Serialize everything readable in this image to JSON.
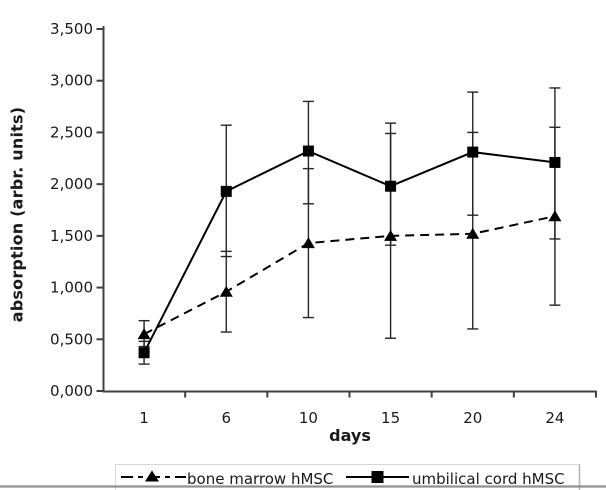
{
  "chart_data": {
    "type": "line",
    "title": "",
    "xlabel": "days",
    "ylabel": "absorption (arbr. units)",
    "x": [
      1,
      6,
      10,
      15,
      20,
      24
    ],
    "x_tick_labels": [
      "1",
      "6",
      "10",
      "15",
      "20",
      "24"
    ],
    "y_tick_labels": [
      "0,000",
      "0,500",
      "1,000",
      "1,500",
      "2,000",
      "2,500",
      "3,000",
      "3,500"
    ],
    "ylim": [
      0,
      3500
    ],
    "y_tick_step": 500,
    "grid": false,
    "legend_position": "bottom",
    "line_color": "#000000",
    "axis_color": "#404040",
    "series": [
      {
        "name": "bone marrow hMSC",
        "marker": "triangle",
        "line_style": "dashed",
        "color": "#000000",
        "values": [
          550,
          960,
          1430,
          1500,
          1520,
          1690
        ],
        "error_low": [
          430,
          570,
          710,
          510,
          600,
          830
        ],
        "error_high": [
          680,
          1350,
          2150,
          2490,
          2500,
          2550
        ]
      },
      {
        "name": "umbilical cord hMSC",
        "marker": "square",
        "line_style": "solid",
        "color": "#000000",
        "values": [
          370,
          1930,
          2320,
          1980,
          2310,
          2210
        ],
        "error_low": [
          260,
          1300,
          1810,
          1410,
          1700,
          1470
        ],
        "error_high": [
          480,
          2570,
          2800,
          2590,
          2890,
          2930
        ]
      }
    ]
  }
}
